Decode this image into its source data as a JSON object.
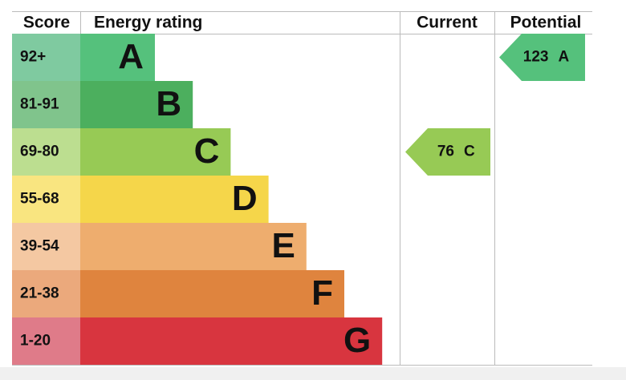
{
  "headers": {
    "score": "Score",
    "rating": "Energy rating",
    "current": "Current",
    "potential": "Potential"
  },
  "bands": [
    {
      "score": "92+",
      "letter": "A",
      "color": "#55c17c",
      "score_color": "#7fcaa0"
    },
    {
      "score": "81-91",
      "letter": "B",
      "color": "#4caf5e",
      "score_color": "#80c48c"
    },
    {
      "score": "69-80",
      "letter": "C",
      "color": "#97ca55",
      "score_color": "#bcde90"
    },
    {
      "score": "55-68",
      "letter": "D",
      "color": "#f5d64a",
      "score_color": "#f9e580"
    },
    {
      "score": "39-54",
      "letter": "E",
      "color": "#eead6e",
      "score_color": "#f4c8a2"
    },
    {
      "score": "21-38",
      "letter": "F",
      "color": "#df843e",
      "score_color": "#eba97c"
    },
    {
      "score": "1-20",
      "letter": "G",
      "color": "#d8353f",
      "score_color": "#df7b89"
    }
  ],
  "current": {
    "value": 76,
    "letter": "C"
  },
  "potential": {
    "value": 123,
    "letter": "A"
  }
}
